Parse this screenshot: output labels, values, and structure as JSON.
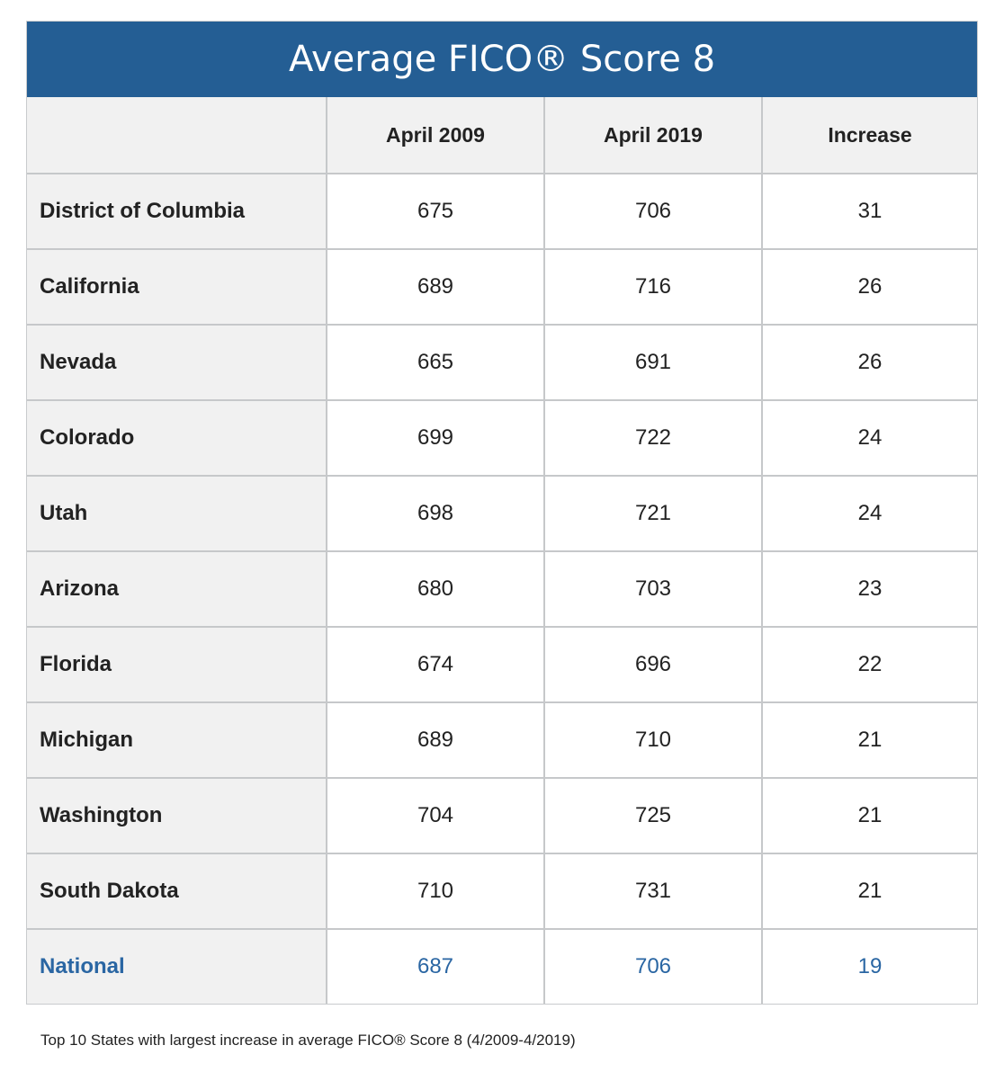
{
  "chart_data": {
    "type": "table",
    "title": "Average FICO® Score 8",
    "columns": [
      "",
      "April 2009",
      "April 2019",
      "Increase"
    ],
    "rows": [
      [
        "District of Columbia",
        "675",
        "706",
        "31"
      ],
      [
        "California",
        "689",
        "716",
        "26"
      ],
      [
        "Nevada",
        "665",
        "691",
        "26"
      ],
      [
        "Colorado",
        "699",
        "722",
        "24"
      ],
      [
        "Utah",
        "698",
        "721",
        "24"
      ],
      [
        "Arizona",
        "680",
        "703",
        "23"
      ],
      [
        "Florida",
        "674",
        "696",
        "22"
      ],
      [
        "Michigan",
        "689",
        "710",
        "21"
      ],
      [
        "Washington",
        "704",
        "725",
        "21"
      ],
      [
        "South Dakota",
        "710",
        "731",
        "21"
      ],
      [
        "National",
        "687",
        "706",
        "19"
      ]
    ],
    "highlight_row": "National",
    "caption": "Top 10 States with largest increase in average FICO® Score 8 (4/2009-4/2019)"
  },
  "colors": {
    "title_bg": "#245e94",
    "highlight_text": "#2a66a3",
    "label_bg": "#f1f1f1"
  }
}
